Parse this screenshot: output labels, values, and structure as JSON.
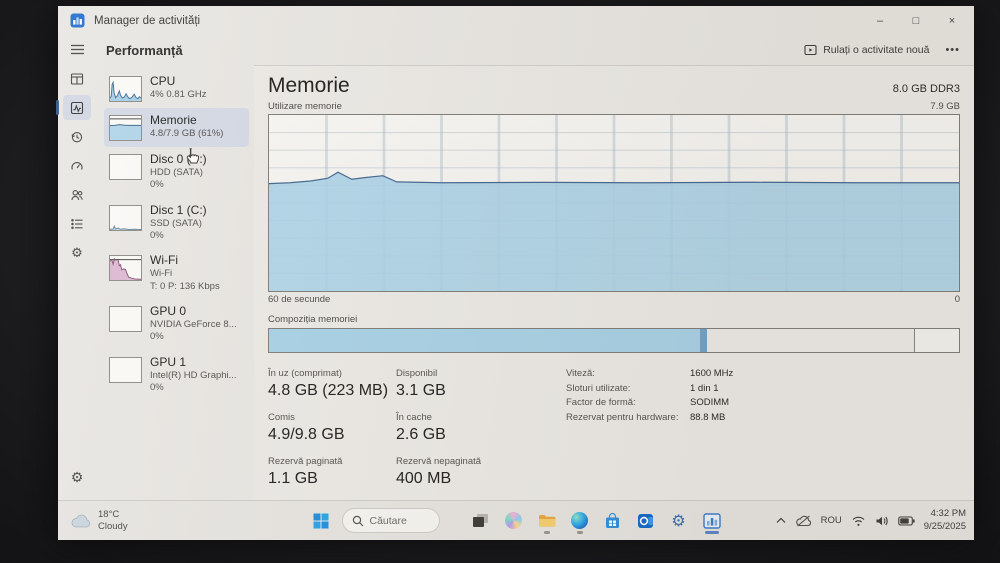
{
  "window": {
    "title": "Manager de activități",
    "minimize": "–",
    "maximize": "□",
    "close": "×"
  },
  "header": {
    "title": "Performanță",
    "run_task": "Rulați o activitate nouă",
    "more": "•••"
  },
  "rail_icons": [
    "menu",
    "processes",
    "performance",
    "app-history",
    "startup-apps",
    "users",
    "details",
    "services",
    "settings"
  ],
  "sidebar": {
    "items": [
      {
        "title": "CPU",
        "line1": "4% 0.81 GHz"
      },
      {
        "title": "Memorie",
        "line1": "4.8/7.9 GB (61%)"
      },
      {
        "title": "Disc 0 (D:)",
        "line1": "HDD (SATA)",
        "line2": "0%"
      },
      {
        "title": "Disc 1 (C:)",
        "line1": "SSD (SATA)",
        "line2": "0%"
      },
      {
        "title": "Wi-Fi",
        "line1": "Wi-Fi",
        "line2": "T: 0 P: 136 Kbps"
      },
      {
        "title": "GPU 0",
        "line1": "NVIDIA GeForce 8...",
        "line2": "0%"
      },
      {
        "title": "GPU 1",
        "line1": "Intel(R) HD Graphi...",
        "line2": "0%"
      }
    ]
  },
  "main": {
    "title": "Memorie",
    "capacity": "8.0 GB DDR3",
    "usage_label": "Utilizare memorie",
    "scale_max": "7.9 GB",
    "time_window": "60 de secunde",
    "scale_min": "0",
    "composition_label": "Compoziția memoriei",
    "stats": [
      {
        "label": "În uz (comprimat)",
        "value": "4.8 GB (223 MB)"
      },
      {
        "label": "Disponibil",
        "value": "3.1 GB"
      },
      {
        "label": "Comis",
        "value": "4.9/9.8 GB"
      },
      {
        "label": "În cache",
        "value": "2.6 GB"
      },
      {
        "label": "Rezervă paginată",
        "value": "1.1 GB"
      },
      {
        "label": "Rezervă nepaginată",
        "value": "400 MB"
      }
    ],
    "details": [
      {
        "label": "Viteză:",
        "value": "1600 MHz"
      },
      {
        "label": "Sloturi utilizate:",
        "value": "1 din 1"
      },
      {
        "label": "Factor de formă:",
        "value": "SODIMM"
      },
      {
        "label": "Rezervat pentru hardware:",
        "value": "88.8 MB"
      }
    ]
  },
  "chart_data": {
    "type": "area",
    "title": "Utilizare memorie",
    "xlabel": "60 de secunde",
    "ylabel": "GB",
    "ylim_gb": [
      0,
      7.9
    ],
    "scale_max_label": "7.9 GB",
    "scale_min_label": "0",
    "current_usage_gb": 4.8,
    "usage_percent": 61,
    "grid": {
      "v_divisions": 12,
      "h_divisions": 10
    },
    "colors": {
      "fill": "#a9d2e7",
      "line": "#44688f",
      "grid": "#a8bcca"
    },
    "series": [
      {
        "name": "memory-usage-percent-of-7.9GB",
        "points": [
          [
            0,
            61
          ],
          [
            3,
            61.5
          ],
          [
            6,
            62.5
          ],
          [
            8.5,
            64
          ],
          [
            10,
            67.5
          ],
          [
            12,
            63.5
          ],
          [
            14,
            64.5
          ],
          [
            16.5,
            65.5
          ],
          [
            18.5,
            62
          ],
          [
            25,
            61.5
          ],
          [
            40,
            61.7
          ],
          [
            55,
            61.5
          ],
          [
            70,
            61.8
          ],
          [
            85,
            61.5
          ],
          [
            100,
            61.5
          ]
        ]
      }
    ],
    "composition": {
      "segments": [
        {
          "name": "in_use",
          "percent": 62.5,
          "color": "#a9d2e7"
        },
        {
          "name": "modified",
          "percent": 1.0,
          "color": "#74a2c6"
        },
        {
          "name": "standby",
          "percent": 30.0,
          "color": "#edebe7"
        },
        {
          "name": "free",
          "percent": 6.5,
          "color": "#f4f3ef"
        }
      ]
    },
    "sparklines": {
      "cpu": {
        "fill": "#9fcbe4",
        "line": "#447099",
        "points": [
          [
            0,
            12
          ],
          [
            4,
            20
          ],
          [
            7,
            70
          ],
          [
            10,
            78
          ],
          [
            13,
            35
          ],
          [
            18,
            14
          ],
          [
            24,
            22
          ],
          [
            30,
            42
          ],
          [
            34,
            24
          ],
          [
            40,
            12
          ],
          [
            46,
            16
          ],
          [
            52,
            30
          ],
          [
            57,
            18
          ],
          [
            63,
            10
          ],
          [
            70,
            14
          ],
          [
            78,
            28
          ],
          [
            84,
            14
          ],
          [
            90,
            10
          ],
          [
            95,
            18
          ],
          [
            100,
            12
          ]
        ]
      },
      "memory": {
        "fill": "#a9d2e7",
        "line": "#44688f",
        "topline": 88,
        "points": [
          [
            0,
            60
          ],
          [
            15,
            61
          ],
          [
            30,
            64
          ],
          [
            45,
            62
          ],
          [
            60,
            61
          ],
          [
            100,
            61
          ]
        ]
      },
      "disk1": {
        "fill": "#b9d6e8",
        "line": "#6a8aa0",
        "points": [
          [
            0,
            3
          ],
          [
            10,
            4
          ],
          [
            14,
            16
          ],
          [
            18,
            4
          ],
          [
            26,
            8
          ],
          [
            34,
            3
          ],
          [
            45,
            5
          ],
          [
            60,
            2
          ],
          [
            80,
            3
          ],
          [
            100,
            2
          ]
        ]
      },
      "wifi": {
        "fill": "#d9b3cf",
        "line": "#8a5878",
        "topline": 85,
        "points": [
          [
            0,
            78
          ],
          [
            6,
            84
          ],
          [
            10,
            66
          ],
          [
            14,
            88
          ],
          [
            20,
            84
          ],
          [
            26,
            86
          ],
          [
            30,
            60
          ],
          [
            34,
            64
          ],
          [
            38,
            42
          ],
          [
            44,
            46
          ],
          [
            50,
            44
          ],
          [
            54,
            30
          ],
          [
            60,
            12
          ],
          [
            68,
            8
          ],
          [
            80,
            4
          ],
          [
            100,
            3
          ]
        ]
      }
    }
  },
  "taskbar": {
    "weather": {
      "temp": "18°C",
      "condition": "Cloudy"
    },
    "search_placeholder": "Căutare",
    "pinned": [
      "task-view",
      "copilot",
      "file-explorer",
      "edge",
      "store",
      "outlook",
      "settings",
      "task-manager"
    ],
    "tray": {
      "chevron": "∧",
      "language": "ROU",
      "time": "4:32 PM",
      "date": "9/25/2025"
    }
  }
}
